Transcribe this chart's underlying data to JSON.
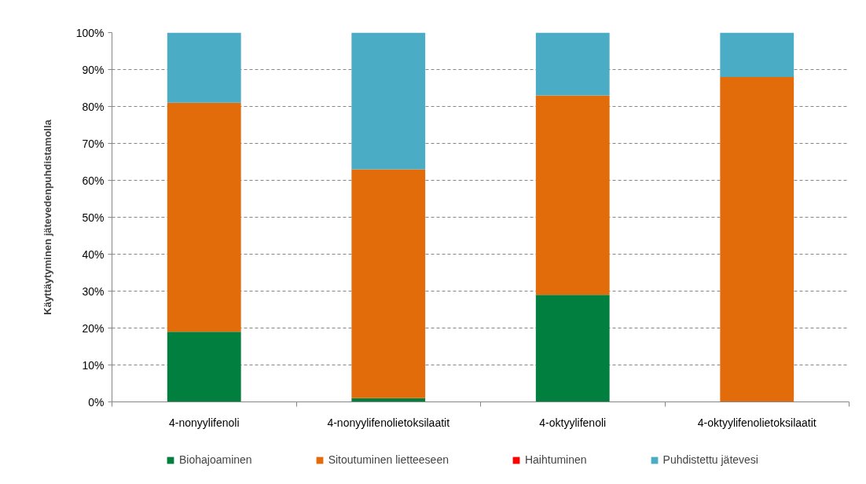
{
  "chart_data": {
    "type": "bar",
    "stacked": true,
    "ylabel": "Käyttäytyminen jätevedenpuhdistamolla",
    "categories": [
      "4-nonyylifenoli",
      "4-nonyylifenolietoksilaatit",
      "4-oktyylifenoli",
      "4-oktyylifenolietoksilaatit"
    ],
    "series": [
      {
        "name": "Biohajoaminen",
        "color": "#007f3f",
        "values": [
          19,
          1,
          29,
          0
        ]
      },
      {
        "name": "Sitoutuminen lietteeseen",
        "color": "#e36c0a",
        "values": [
          62,
          62,
          54,
          88
        ]
      },
      {
        "name": "Haihtuminen",
        "color": "#ff0000",
        "values": [
          0,
          0,
          0,
          0
        ]
      },
      {
        "name": "Puhdistettu jätevesi",
        "color": "#4bacc6",
        "values": [
          19,
          37,
          17,
          12
        ]
      }
    ],
    "ylim": [
      0,
      100
    ],
    "yticks": [
      {
        "value": 0,
        "label": "0%"
      },
      {
        "value": 10,
        "label": "10%"
      },
      {
        "value": 20,
        "label": "20%"
      },
      {
        "value": 30,
        "label": "30%"
      },
      {
        "value": 40,
        "label": "40%"
      },
      {
        "value": 50,
        "label": "50%"
      },
      {
        "value": 60,
        "label": "60%"
      },
      {
        "value": 70,
        "label": "70%"
      },
      {
        "value": 80,
        "label": "80%"
      },
      {
        "value": 90,
        "label": "90%"
      },
      {
        "value": 100,
        "label": "100%"
      }
    ],
    "grid": "y",
    "legend": "bottom"
  }
}
